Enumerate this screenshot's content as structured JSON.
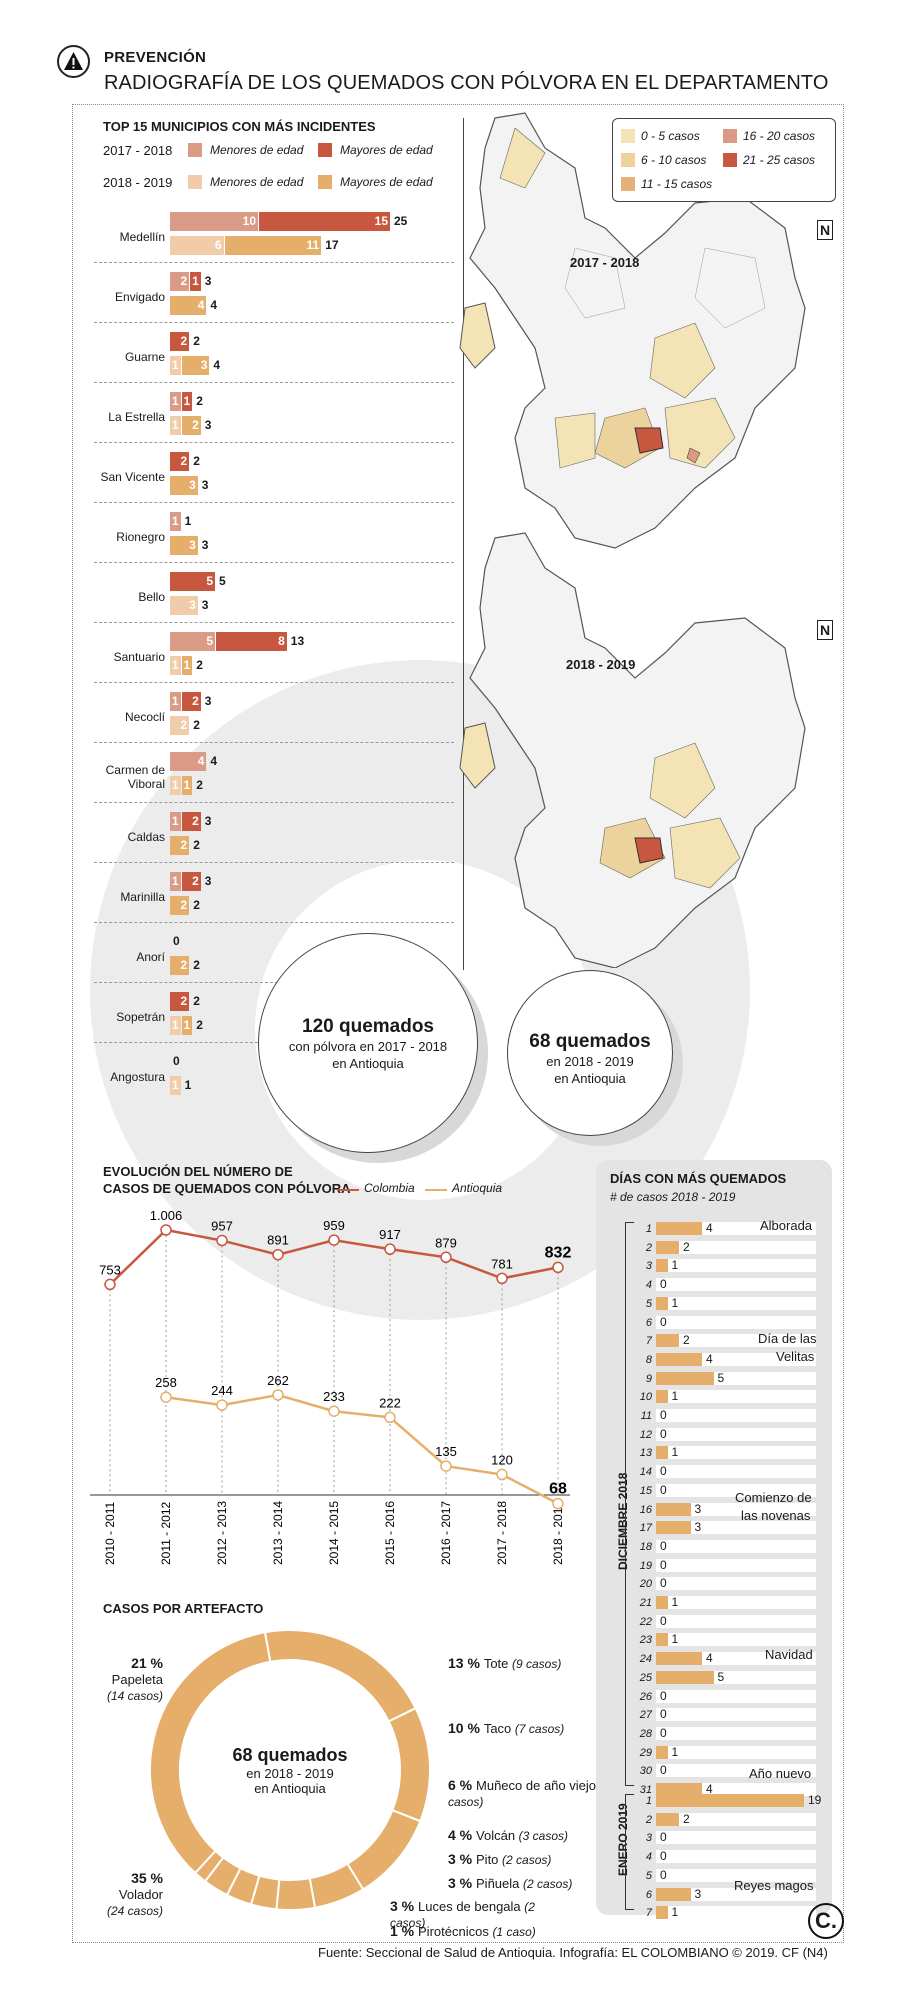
{
  "header": {
    "kicker": "PREVENCIÓN",
    "title": "RADIOGRAFÍA DE LOS QUEMADOS CON PÓLVORA EN EL DEPARTAMENTO",
    "warning_icon": "warning-triangle-icon"
  },
  "colors": {
    "minor_1718": "#d99a86",
    "major_1718": "#c8573f",
    "minor_1819": "#f0ccaa",
    "major_1819": "#e6ae6b",
    "line_colombia": "#c8573f",
    "line_antioquia": "#e6ae6b"
  },
  "top15": {
    "title": "TOP 15 MUNICIPIOS CON MÁS INCIDENTES",
    "period1": "2017 - 2018",
    "period2": "2018 - 2019",
    "minor": "Menores de edad",
    "major": "Mayores de edad",
    "rows": [
      {
        "name": "Medellín",
        "a": {
          "m": 10,
          "M": 15,
          "t": "25"
        },
        "b": {
          "m": 6,
          "M": 11,
          "t": "17"
        }
      },
      {
        "name": "Envigado",
        "a": {
          "m": 2,
          "M": 1,
          "t": "3"
        },
        "b": {
          "m": 0,
          "M": 4,
          "t": "4"
        }
      },
      {
        "name": "Guarne",
        "a": {
          "m": 0,
          "M": 2,
          "t": "2"
        },
        "b": {
          "m": 1,
          "M": 3,
          "t": "4"
        }
      },
      {
        "name": "La Estrella",
        "a": {
          "m": 1,
          "M": 1,
          "t": "2"
        },
        "b": {
          "m": 1,
          "M": 2,
          "t": "3"
        }
      },
      {
        "name": "San Vicente",
        "a": {
          "m": 0,
          "M": 2,
          "t": "2"
        },
        "b": {
          "m": 0,
          "M": 3,
          "t": "3"
        }
      },
      {
        "name": "Rionegro",
        "a": {
          "m": 1,
          "M": 0,
          "t": "1"
        },
        "b": {
          "m": 0,
          "M": 3,
          "t": "3"
        }
      },
      {
        "name": "Bello",
        "a": {
          "m": 0,
          "M": 5,
          "t": "5"
        },
        "b": {
          "m": 3,
          "M": 0,
          "t": "3"
        }
      },
      {
        "name": "Santuario",
        "a": {
          "m": 5,
          "M": 8,
          "t": "13"
        },
        "b": {
          "m": 1,
          "M": 1,
          "t": "2"
        }
      },
      {
        "name": "Necoclí",
        "a": {
          "m": 1,
          "M": 2,
          "t": "3"
        },
        "b": {
          "m": 2,
          "M": 0,
          "t": "2"
        }
      },
      {
        "name": "Carmen de Viboral",
        "a": {
          "m": 4,
          "M": 0,
          "t": "4"
        },
        "b": {
          "m": 1,
          "M": 1,
          "t": "2"
        }
      },
      {
        "name": "Caldas",
        "a": {
          "m": 1,
          "M": 2,
          "t": "3"
        },
        "b": {
          "m": 0,
          "M": 2,
          "t": "2"
        }
      },
      {
        "name": "Marinilla",
        "a": {
          "m": 1,
          "M": 2,
          "t": "3"
        },
        "b": {
          "m": 0,
          "M": 2,
          "t": "2"
        }
      },
      {
        "name": "Anorí",
        "a": {
          "m": 0,
          "M": 0,
          "t": "0"
        },
        "b": {
          "m": 0,
          "M": 2,
          "t": "2"
        }
      },
      {
        "name": "Sopetrán",
        "a": {
          "m": 0,
          "M": 2,
          "t": "2"
        },
        "b": {
          "m": 1,
          "M": 1,
          "t": "2"
        }
      },
      {
        "name": "Angostura",
        "a": {
          "m": 0,
          "M": 0,
          "t": "0"
        },
        "b": {
          "m": 1,
          "M": 0,
          "t": "1"
        }
      }
    ]
  },
  "maps": {
    "legend": [
      "0 - 5 casos",
      "6 - 10 casos",
      "11 - 15 casos",
      "16 - 20 casos",
      "21 - 25 casos"
    ],
    "legend_colors": [
      "#f3e3b5",
      "#ecd29d",
      "#e6b07a",
      "#dc9a85",
      "#c8573f"
    ],
    "label1": "2017 - 2018",
    "label2": "2018 - 2019",
    "north": "N"
  },
  "totals": {
    "c1_big": "120 quemados",
    "c1_l1": "con pólvora en 2017 - 2018",
    "c1_l2": "en Antioquia",
    "c2_big": "68 quemados",
    "c2_l1": "en 2018 - 2019",
    "c2_l2": "en Antioquia"
  },
  "evolution": {
    "title1": "EVOLUCIÓN DEL NÚMERO DE",
    "title2": "CASOS DE QUEMADOS CON PÓLVORA",
    "leg_colombia": "Colombia",
    "leg_antioquia": "Antioquia"
  },
  "chart_data": [
    {
      "type": "line",
      "title": "EVOLUCIÓN DEL NÚMERO DE CASOS DE QUEMADOS CON PÓLVORA",
      "x": [
        "2010 - 2011",
        "2011 - 2012",
        "2012 - 2013",
        "2013 - 2014",
        "2014 - 2015",
        "2015 - 2016",
        "2016 - 2017",
        "2017 - 2018",
        "2018 - 2019"
      ],
      "series": [
        {
          "name": "Colombia",
          "values": [
            753,
            1006,
            957,
            891,
            959,
            917,
            879,
            781,
            832
          ],
          "labels": [
            "753",
            "1.006",
            "957",
            "891",
            "959",
            "917",
            "879",
            "781",
            "832"
          ]
        },
        {
          "name": "Antioquia",
          "values": [
            null,
            258,
            244,
            262,
            233,
            222,
            135,
            120,
            68
          ],
          "labels": [
            "",
            "258",
            "244",
            "262",
            "233",
            "222",
            "135",
            "120",
            "68"
          ]
        }
      ],
      "ylim": [
        0,
        1100
      ]
    },
    {
      "type": "pie",
      "title": "CASOS POR ARTEFACTO",
      "center_big": "68 quemados",
      "center_l1": "en 2018 - 2019",
      "center_l2": "en Antioquia",
      "slices": [
        {
          "name": "Papeleta",
          "pct": "21 %",
          "cases": "(14 casos)",
          "value": 14
        },
        {
          "name": "Tote",
          "pct": "13 %",
          "cases": "(9 casos)",
          "value": 9
        },
        {
          "name": "Taco",
          "pct": "10 %",
          "cases": "(7 casos)",
          "value": 7
        },
        {
          "name": "Muñeco de año viejo",
          "pct": "6 %",
          "cases": "(4 casos)",
          "value": 4
        },
        {
          "name": "Volcán",
          "pct": "4 %",
          "cases": "(3 casos)",
          "value": 3
        },
        {
          "name": "Pito",
          "pct": "3 %",
          "cases": "(2 casos)",
          "value": 2
        },
        {
          "name": "Piñuela",
          "pct": "3 %",
          "cases": "(2 casos)",
          "value": 2
        },
        {
          "name": "Luces de bengala",
          "pct": "3 %",
          "cases": "(2 casos)",
          "value": 2
        },
        {
          "name": "Pirotécnicos",
          "pct": "1 %",
          "cases": "(1 caso)",
          "value": 1
        },
        {
          "name": "Volador",
          "pct": "35 %",
          "cases": "(24 casos)",
          "value": 24
        }
      ]
    },
    {
      "type": "bar",
      "title": "DÍAS CON MÁS QUEMADOS",
      "subtitle": "# de casos 2018 - 2019",
      "dic_label": "DICIEMBRE 2018",
      "ene_label": "ENERO 2019",
      "dic_days": [
        "1",
        "2",
        "3",
        "4",
        "5",
        "6",
        "7",
        "8",
        "9",
        "10",
        "11",
        "12",
        "13",
        "14",
        "15",
        "16",
        "17",
        "18",
        "19",
        "20",
        "21",
        "22",
        "23",
        "24",
        "25",
        "26",
        "27",
        "28",
        "29",
        "30",
        "31"
      ],
      "dic_values": [
        4,
        2,
        1,
        0,
        1,
        0,
        2,
        4,
        5,
        1,
        0,
        0,
        1,
        0,
        0,
        3,
        3,
        0,
        0,
        0,
        1,
        0,
        1,
        4,
        5,
        0,
        0,
        0,
        1,
        0,
        4
      ],
      "ene_days": [
        "1",
        "2",
        "3",
        "4",
        "5",
        "6",
        "7"
      ],
      "ene_values": [
        19,
        2,
        0,
        0,
        0,
        3,
        1
      ],
      "notes": [
        "Alborada",
        "Día de las",
        "Velitas",
        "Comienzo de",
        "las novenas",
        "Navidad",
        "Año nuevo",
        "Reyes magos"
      ]
    }
  ],
  "artefacto_title": "CASOS POR ARTEFACTO",
  "source": "Fuente: Seccional de Salud de Antioquia. Infografía: EL COLOMBIANO © 2019. CF (N4)",
  "logo": "C."
}
